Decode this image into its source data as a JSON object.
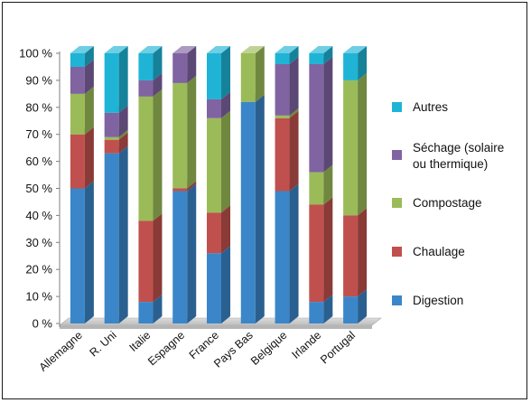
{
  "chart_data": {
    "type": "bar",
    "stacked": true,
    "percent": true,
    "categories": [
      "Allemagne",
      "R. Uni",
      "Italie",
      "Espagne",
      "France",
      "Pays Bas",
      "Belgique",
      "Irlande",
      "Portugal"
    ],
    "series": [
      {
        "name": "Digestion",
        "color": "#3b86c8",
        "values": [
          50,
          63,
          8,
          49,
          26,
          82,
          49,
          8,
          10
        ]
      },
      {
        "name": "Chaulage",
        "color": "#c0504d",
        "values": [
          20,
          5,
          30,
          1,
          15,
          0,
          27,
          36,
          30
        ]
      },
      {
        "name": "Compostage",
        "color": "#9bbb59",
        "values": [
          15,
          1,
          46,
          39,
          35,
          18,
          1,
          12,
          50
        ]
      },
      {
        "name": "Séchage (solaire ou thermique)",
        "color": "#8064a2",
        "values": [
          10,
          9,
          6,
          11,
          7,
          0,
          19,
          40,
          0
        ]
      },
      {
        "name": "Autres",
        "color": "#1fb4d6",
        "values": [
          5,
          22,
          10,
          0,
          17,
          0,
          4,
          4,
          10
        ]
      }
    ],
    "ylim": [
      0,
      100
    ],
    "yticks": [
      "0 %",
      "10 %",
      "20 %",
      "30 %",
      "40 %",
      "50 %",
      "60 %",
      "70 %",
      "80 %",
      "90 %",
      "100 %"
    ],
    "legend_order": [
      "Autres",
      "Séchage (solaire ou thermique)",
      "Compostage",
      "Chaulage",
      "Digestion"
    ],
    "legend_position": "right",
    "grid": false,
    "title": "",
    "xlabel": "",
    "ylabel": ""
  }
}
